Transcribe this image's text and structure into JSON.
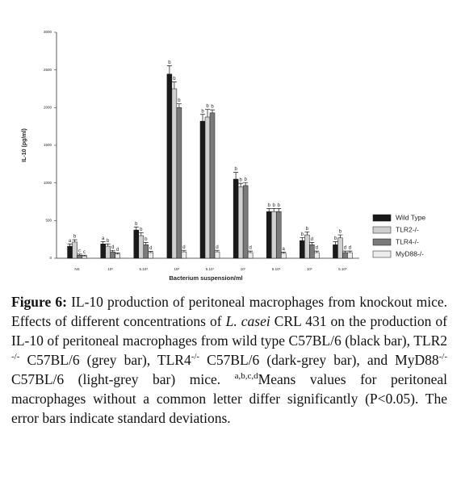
{
  "chart_data": {
    "type": "bar",
    "ylabel": "IL-10 (pg/ml)",
    "xlabel": "Bacterium suspension/ml",
    "categories": [
      "NS",
      "10⁹",
      "5.10⁸",
      "10⁸",
      "5.10⁷",
      "10⁷",
      "5.10⁶",
      "10⁶",
      "5.10⁵"
    ],
    "ylim": [
      0,
      3000
    ],
    "yticks": [
      0,
      500,
      1000,
      1500,
      2000,
      2500,
      3000
    ],
    "legend": "right",
    "series": [
      {
        "name": "Wild Type",
        "color": "#1a1a1a",
        "values": [
          160,
          190,
          375,
          2445,
          1820,
          1050,
          620,
          235,
          180
        ],
        "errors": [
          30,
          30,
          40,
          110,
          90,
          90,
          40,
          40,
          40
        ],
        "letters": [
          "a",
          "a",
          "b",
          "b",
          "b",
          "b",
          "b",
          "b",
          "b"
        ]
      },
      {
        "name": "TLR2-/-",
        "color": "#d0d0d0",
        "values": [
          215,
          160,
          300,
          2250,
          1875,
          945,
          620,
          310,
          270
        ],
        "errors": [
          30,
          30,
          40,
          90,
          100,
          50,
          40,
          40,
          40
        ],
        "letters": [
          "b",
          "b",
          "b",
          "b",
          "b",
          "b",
          "b",
          "b",
          "b"
        ]
      },
      {
        "name": "TLR4-/-",
        "color": "#7a7a7a",
        "values": [
          40,
          85,
          180,
          2000,
          1930,
          965,
          620,
          180,
          75
        ],
        "errors": [
          15,
          20,
          30,
          50,
          40,
          40,
          40,
          30,
          20
        ],
        "letters": [
          "c",
          "d",
          "b",
          "b",
          "b",
          "b",
          "b",
          "d",
          "d"
        ]
      },
      {
        "name": "MyD88-/-",
        "color": "#ececec",
        "values": [
          30,
          55,
          75,
          85,
          85,
          75,
          65,
          75,
          75
        ],
        "errors": [
          10,
          15,
          15,
          20,
          20,
          20,
          15,
          20,
          20
        ],
        "letters": [
          "c",
          "d",
          "d",
          "d",
          "d",
          "d",
          "a",
          "d",
          "d"
        ]
      }
    ]
  },
  "caption": {
    "parts": [
      "Figure 6:",
      " IL-10 production of peritoneal macrophages from knockout mice. Effects of different concentrations of ",
      "L. casei",
      " CRL 431 on the production of IL-10 of peritoneal macrophages from wild type C57BL/6 (black bar), TLR2 ",
      "-/-",
      " C57BL/6 (grey bar), TLR4",
      "-/-",
      " C57BL/6 (dark-grey bar), and MyD88",
      "-/-",
      " C57BL/6 (light-grey bar) mice. ",
      "a,b,c,d",
      "Means values for peritoneal macrophages without a common letter differ significantly (P<0.05). The error bars indicate standard deviations."
    ]
  }
}
